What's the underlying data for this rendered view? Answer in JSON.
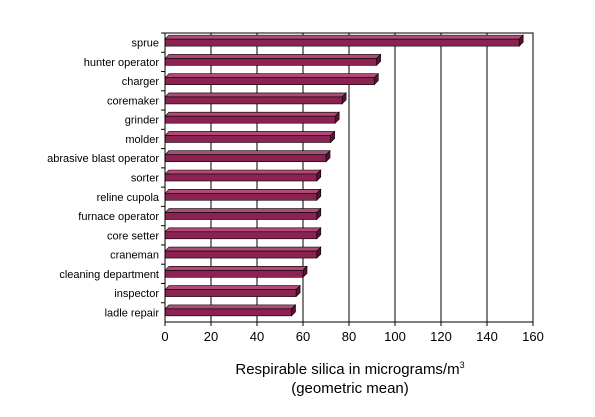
{
  "chart_data": {
    "type": "bar",
    "orientation": "horizontal",
    "categories": [
      "sprue",
      "hunter operator",
      "charger",
      "coremaker",
      "grinder",
      "molder",
      "abrasive blast operator",
      "sorter",
      "reline cupola",
      "furnace operator",
      "core setter",
      "craneman",
      "cleaning department",
      "inspector",
      "ladle repair"
    ],
    "values": [
      154,
      92,
      91,
      77,
      74,
      72,
      70,
      66,
      66,
      66,
      66,
      66,
      60,
      57,
      55
    ],
    "xlabel": "Respirable silica in micrograms/m",
    "xlabel_superscript": "3",
    "xlabel_line2": "(geometric mean)",
    "xlim": [
      0,
      160
    ],
    "xticks": [
      0,
      20,
      40,
      60,
      80,
      100,
      120,
      140,
      160
    ],
    "grid": "vertical",
    "bar_color": "#8b2252",
    "bar_side_color": "#5a1232",
    "bar_top_color": "#b04a76",
    "legend": "none"
  }
}
